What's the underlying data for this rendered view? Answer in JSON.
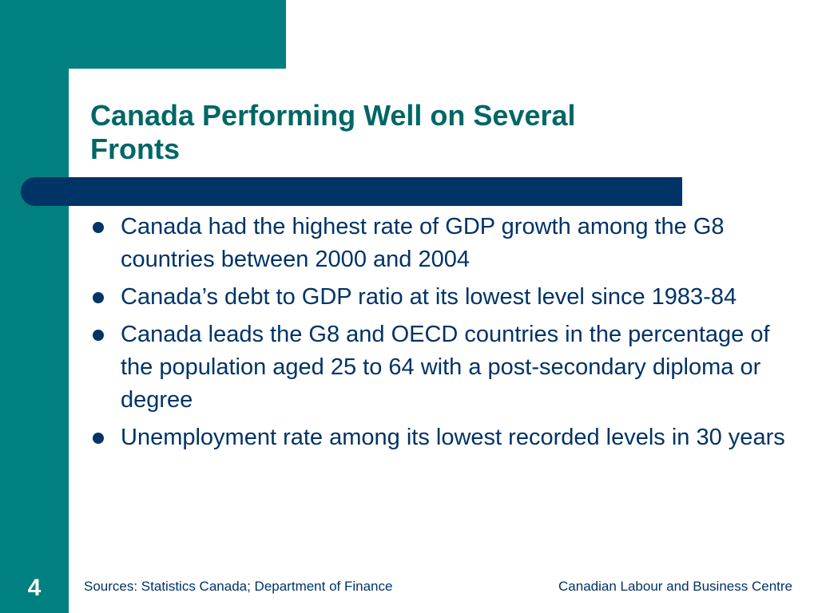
{
  "slide": {
    "title": "Canada Performing Well on Several Fronts",
    "bullets": [
      "Canada had the highest rate of GDP growth among the G8 countries between 2000 and 2004",
      "Canada’s debt to GDP ratio at its lowest level since 1983-84",
      "Canada leads the G8 and OECD countries in the percentage of the population aged 25 to 64 with a post-secondary diploma or degree",
      "Unemployment rate among its lowest recorded levels in 30 years"
    ],
    "page_number": "4",
    "footer_sources": "Sources: Statistics Canada; Department of Finance",
    "footer_organization": "Canadian Labour and Business Centre"
  },
  "colors": {
    "teal_background": "#008080",
    "title_text": "#006666",
    "navy_bar": "#003366",
    "body_text": "#003366"
  }
}
